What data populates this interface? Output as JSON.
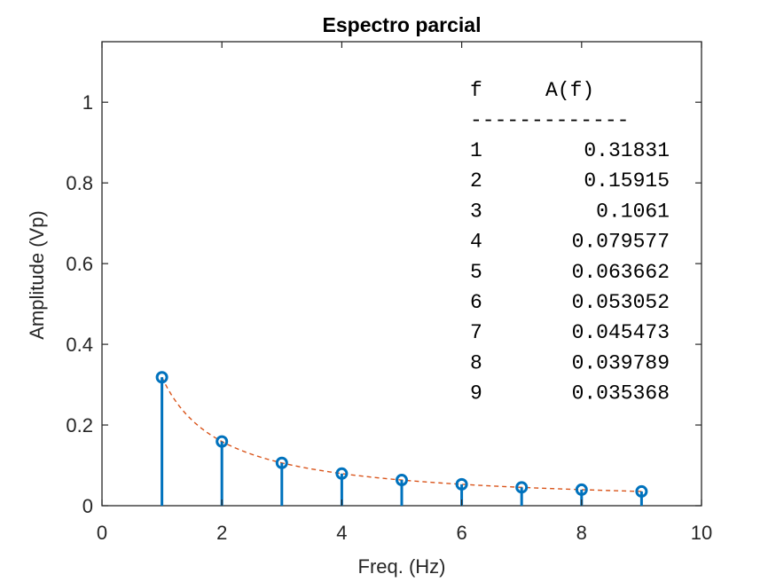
{
  "chart_data": {
    "type": "stem",
    "title": "Espectro parcial",
    "xlabel": "Freq. (Hz)",
    "ylabel": "Amplitude (Vp)",
    "xlim": [
      0,
      10
    ],
    "ylim": [
      0,
      1.15
    ],
    "xticks": [
      "0",
      "2",
      "4",
      "6",
      "8",
      "10"
    ],
    "yticks": [
      "0",
      "0.2",
      "0.4",
      "0.6",
      "0.8",
      "1"
    ],
    "grid": false,
    "x": [
      1,
      2,
      3,
      4,
      5,
      6,
      7,
      8,
      9
    ],
    "values": [
      0.31831,
      0.15915,
      0.1061,
      0.079577,
      0.063662,
      0.053052,
      0.045473,
      0.039789,
      0.035368
    ],
    "stem_color": "#0072BD",
    "envelope_color": "#D95319",
    "envelope": "dashed 1/(pi*f)",
    "table": {
      "headers": [
        "f",
        "A(f)"
      ],
      "separator": "-------------",
      "rows": [
        [
          "1",
          "0.31831"
        ],
        [
          "2",
          "0.15915"
        ],
        [
          "3",
          "0.1061"
        ],
        [
          "4",
          "0.079577"
        ],
        [
          "5",
          "0.063662"
        ],
        [
          "6",
          "0.053052"
        ],
        [
          "7",
          "0.045473"
        ],
        [
          "8",
          "0.039789"
        ],
        [
          "9",
          "0.035368"
        ]
      ]
    }
  }
}
